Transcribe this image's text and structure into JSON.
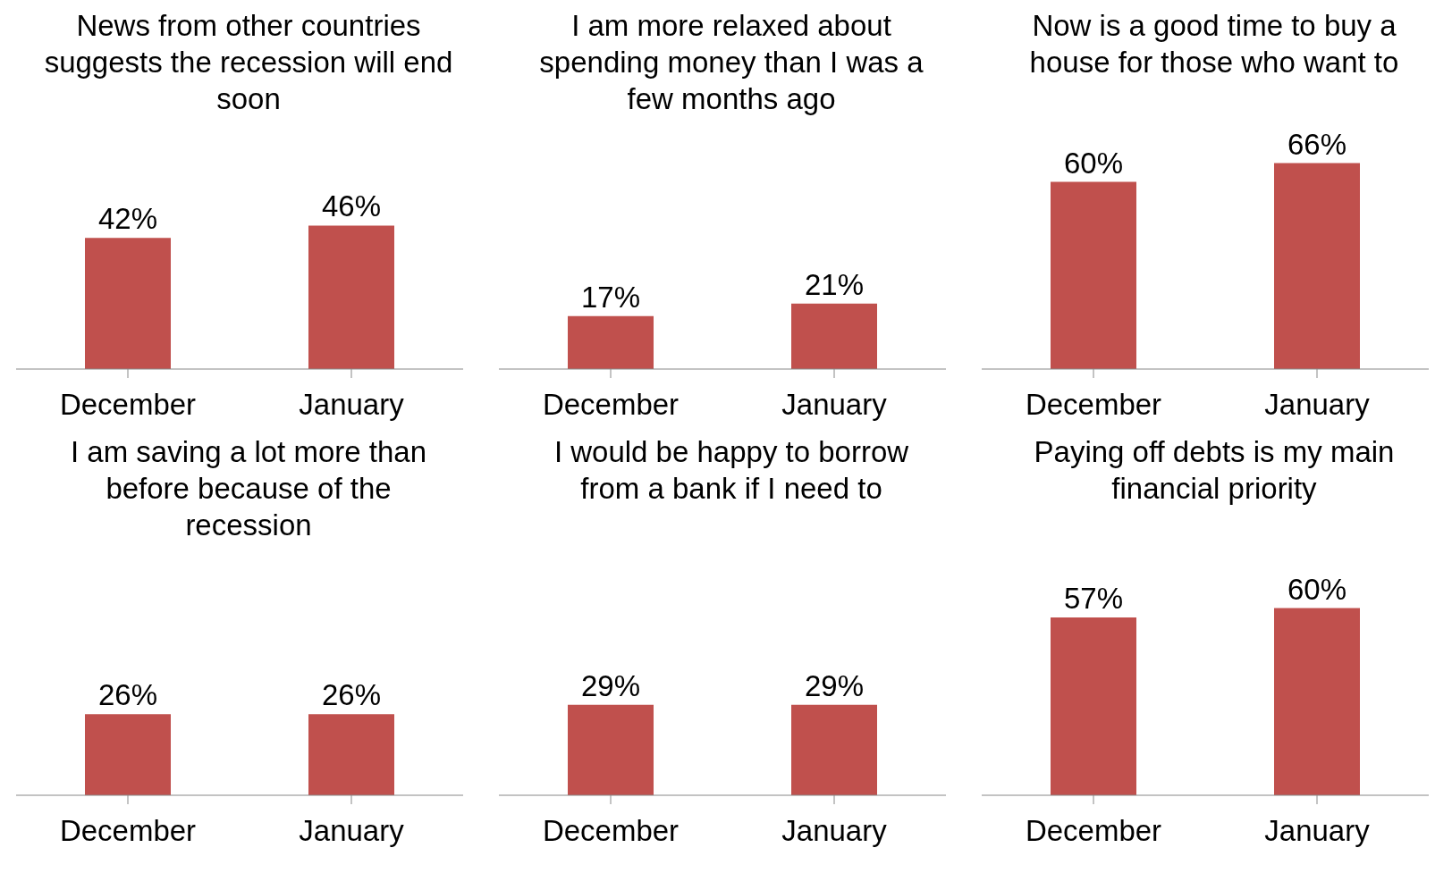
{
  "chart_data": [
    {
      "type": "bar",
      "title": "News from other countries suggests the recession will end soon",
      "categories": [
        "December",
        "January"
      ],
      "values": [
        42,
        46
      ],
      "value_labels": [
        "42%",
        "46%"
      ],
      "color": "#c0504d"
    },
    {
      "type": "bar",
      "title": "I am more relaxed about spending money than I was a few months ago",
      "categories": [
        "December",
        "January"
      ],
      "values": [
        17,
        21
      ],
      "value_labels": [
        "17%",
        "21%"
      ],
      "color": "#c0504d"
    },
    {
      "type": "bar",
      "title": "Now is a good time to buy a house for those who want to",
      "categories": [
        "December",
        "January"
      ],
      "values": [
        60,
        66
      ],
      "value_labels": [
        "60%",
        "66%"
      ],
      "color": "#c0504d"
    },
    {
      "type": "bar",
      "title": "I am saving a lot more than before because of the recession",
      "categories": [
        "December",
        "January"
      ],
      "values": [
        26,
        26
      ],
      "value_labels": [
        "26%",
        "26%"
      ],
      "color": "#c0504d"
    },
    {
      "type": "bar",
      "title": "I would be happy to borrow from a bank if I need to",
      "categories": [
        "December",
        "January"
      ],
      "values": [
        29,
        29
      ],
      "value_labels": [
        "29%",
        "29%"
      ],
      "color": "#c0504d"
    },
    {
      "type": "bar",
      "title": "Paying  off debts is my main financial priority",
      "categories": [
        "December",
        "January"
      ],
      "values": [
        57,
        60
      ],
      "value_labels": [
        "57%",
        "60%"
      ],
      "color": "#c0504d"
    }
  ]
}
